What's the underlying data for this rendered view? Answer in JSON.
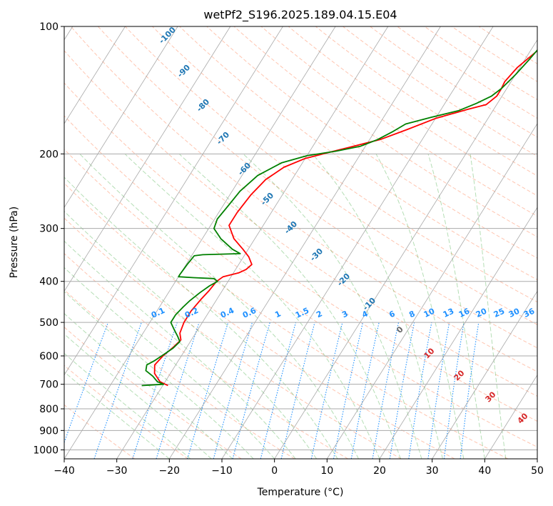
{
  "chart_data": {
    "type": "line",
    "title": "wetPf2_S196.2025.189.04.15.E04",
    "xlabel": "Temperature (°C)",
    "ylabel": "Pressure (hPa)",
    "xlim": [
      -40,
      50
    ],
    "ylim": [
      1050,
      100
    ],
    "y_scale": "log",
    "x_ticks": [
      -40,
      -30,
      -20,
      -10,
      0,
      10,
      20,
      30,
      40,
      50
    ],
    "y_ticks": [
      100,
      200,
      300,
      400,
      500,
      600,
      700,
      800,
      900,
      1000
    ],
    "x_tick_labels": [
      "−40",
      "−30",
      "−20",
      "−10",
      "0",
      "10",
      "20",
      "30",
      "40",
      "50"
    ],
    "y_tick_labels": [
      "100",
      "200",
      "300",
      "400",
      "500",
      "600",
      "700",
      "800",
      "900",
      "1000"
    ],
    "grid": true,
    "colors": {
      "temperature": "#ff0000",
      "dewpoint": "#008000",
      "isotherm": "#999999",
      "dry_adiabat": "#ff7f50",
      "moist_adiabat": "#2ca02c",
      "mixing_ratio": "#1e90ff",
      "dry_adiabat_label": "#1f77b4",
      "moist_adiabat_label": "#d62728"
    },
    "series": [
      {
        "color": "#ff0000",
        "points": [
          {
            "x": -29.0,
            "y": 705
          },
          {
            "x": -31.0,
            "y": 690
          },
          {
            "x": -33.0,
            "y": 660
          },
          {
            "x": -34.0,
            "y": 630
          },
          {
            "x": -33.5,
            "y": 600
          },
          {
            "x": -32.5,
            "y": 570
          },
          {
            "x": -32.0,
            "y": 550
          },
          {
            "x": -33.0,
            "y": 530
          },
          {
            "x": -33.5,
            "y": 500
          },
          {
            "x": -33.5,
            "y": 470
          },
          {
            "x": -33.0,
            "y": 440
          },
          {
            "x": -32.5,
            "y": 420
          },
          {
            "x": -32.2,
            "y": 400
          },
          {
            "x": -31.5,
            "y": 390
          },
          {
            "x": -29.0,
            "y": 382
          },
          {
            "x": -28.0,
            "y": 375
          },
          {
            "x": -27.5,
            "y": 365
          },
          {
            "x": -29.0,
            "y": 350
          },
          {
            "x": -31.0,
            "y": 336
          },
          {
            "x": -34.0,
            "y": 317
          },
          {
            "x": -36.5,
            "y": 295
          },
          {
            "x": -36.5,
            "y": 275
          },
          {
            "x": -36.0,
            "y": 250
          },
          {
            "x": -35.0,
            "y": 230
          },
          {
            "x": -33.0,
            "y": 215
          },
          {
            "x": -30.0,
            "y": 205
          },
          {
            "x": -26.0,
            "y": 198
          },
          {
            "x": -23.0,
            "y": 193
          },
          {
            "x": -18.0,
            "y": 185
          },
          {
            "x": -14.0,
            "y": 175
          },
          {
            "x": -10.0,
            "y": 165
          },
          {
            "x": -5.0,
            "y": 157
          },
          {
            "x": -2.0,
            "y": 153
          },
          {
            "x": -1.0,
            "y": 146
          },
          {
            "x": -1.0,
            "y": 141
          },
          {
            "x": -1.2,
            "y": 135
          },
          {
            "x": -0.5,
            "y": 125
          },
          {
            "x": 1.5,
            "y": 113
          },
          {
            "x": 3.5,
            "y": 100
          }
        ]
      },
      {
        "color": "#008000",
        "points": [
          {
            "x": -34.0,
            "y": 705
          },
          {
            "x": -30.0,
            "y": 700
          },
          {
            "x": -31.5,
            "y": 690
          },
          {
            "x": -33.0,
            "y": 670
          },
          {
            "x": -35.0,
            "y": 650
          },
          {
            "x": -35.5,
            "y": 630
          },
          {
            "x": -34.5,
            "y": 615
          },
          {
            "x": -33.5,
            "y": 595
          },
          {
            "x": -32.5,
            "y": 575
          },
          {
            "x": -32.0,
            "y": 555
          },
          {
            "x": -33.0,
            "y": 540
          },
          {
            "x": -34.5,
            "y": 520
          },
          {
            "x": -36.0,
            "y": 500
          },
          {
            "x": -36.0,
            "y": 480
          },
          {
            "x": -35.5,
            "y": 460
          },
          {
            "x": -35.0,
            "y": 445
          },
          {
            "x": -34.0,
            "y": 425
          },
          {
            "x": -33.0,
            "y": 410
          },
          {
            "x": -32.0,
            "y": 400
          },
          {
            "x": -33.0,
            "y": 394
          },
          {
            "x": -37.0,
            "y": 392
          },
          {
            "x": -40.0,
            "y": 390
          },
          {
            "x": -40.0,
            "y": 385
          },
          {
            "x": -39.8,
            "y": 365
          },
          {
            "x": -39.5,
            "y": 348
          },
          {
            "x": -38.0,
            "y": 346
          },
          {
            "x": -31.0,
            "y": 344
          },
          {
            "x": -33.0,
            "y": 336
          },
          {
            "x": -36.5,
            "y": 317
          },
          {
            "x": -39.0,
            "y": 300
          },
          {
            "x": -39.5,
            "y": 285
          },
          {
            "x": -39.0,
            "y": 265
          },
          {
            "x": -38.5,
            "y": 245
          },
          {
            "x": -37.0,
            "y": 225
          },
          {
            "x": -34.0,
            "y": 210
          },
          {
            "x": -30.0,
            "y": 202
          },
          {
            "x": -25.0,
            "y": 197
          },
          {
            "x": -21.0,
            "y": 192
          },
          {
            "x": -18.5,
            "y": 185
          },
          {
            "x": -16.5,
            "y": 177
          },
          {
            "x": -15.0,
            "y": 170
          },
          {
            "x": -11.0,
            "y": 164
          },
          {
            "x": -6.5,
            "y": 158
          },
          {
            "x": -4.0,
            "y": 152
          },
          {
            "x": -2.0,
            "y": 146
          },
          {
            "x": -1.0,
            "y": 140
          },
          {
            "x": 0.0,
            "y": 130
          },
          {
            "x": 0.8,
            "y": 120
          },
          {
            "x": 1.5,
            "y": 110
          },
          {
            "x": 2.5,
            "y": 100
          }
        ]
      }
    ],
    "dry_adiabat_labels": [
      "-100",
      "-90",
      "-80",
      "-70",
      "-60",
      "-50",
      "-40",
      "-30",
      "-20",
      "-10"
    ],
    "mixing_ratio_labels": [
      "0.1",
      "0.2",
      "0.4",
      "0.6",
      "1",
      "1.5",
      "2",
      "3",
      "4",
      "6",
      "8",
      "10",
      "13",
      "16",
      "20",
      "25",
      "30",
      "36"
    ],
    "moist_adiabat_labels": [
      "0",
      "10",
      "20",
      "30",
      "40"
    ]
  }
}
